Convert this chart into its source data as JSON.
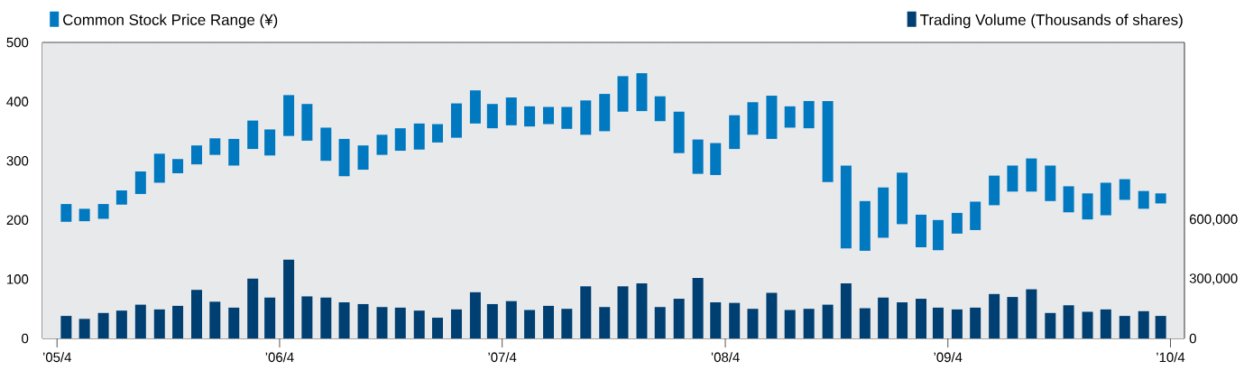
{
  "chart_data": {
    "type": "bar",
    "legend": "top",
    "grid": "y",
    "x": [
      "2005-04-16",
      "2005-05-16",
      "2005-06-16",
      "2005-07-16",
      "2005-08-16",
      "2005-09-16",
      "2005-10-16",
      "2005-11-16",
      "2005-12-16",
      "2006-01-16",
      "2006-02-16",
      "2006-03-16",
      "2006-04-16",
      "2006-05-16",
      "2006-06-16",
      "2006-07-16",
      "2006-08-16",
      "2006-09-16",
      "2006-10-16",
      "2006-11-16",
      "2006-12-16",
      "2007-01-16",
      "2007-02-16",
      "2007-03-16",
      "2007-04-16",
      "2007-05-16",
      "2007-06-16",
      "2007-07-16",
      "2007-08-16",
      "2007-09-16",
      "2007-10-16",
      "2007-11-16",
      "2007-12-16",
      "2008-01-16",
      "2008-02-16",
      "2008-03-16",
      "2008-04-16",
      "2008-05-16",
      "2008-06-16",
      "2008-07-16",
      "2008-08-16",
      "2008-09-16",
      "2008-10-16",
      "2008-11-16",
      "2008-12-16",
      "2009-01-16",
      "2009-02-16",
      "2009-03-16",
      "2009-04-16",
      "2009-05-16",
      "2009-06-16",
      "2009-07-16",
      "2009-08-16",
      "2009-09-16",
      "2009-10-16",
      "2009-11-16",
      "2009-12-16",
      "2010-01-16",
      "2010-02-16",
      "2010-03-16"
    ],
    "xlim": [
      "2005-03-08",
      "2010-04-24"
    ],
    "xticks": [
      {
        "value": "2005-04-01",
        "label": "’05/4"
      },
      {
        "value": "2006-04-01",
        "label": "’06/4"
      },
      {
        "value": "2007-04-01",
        "label": "’07/4"
      },
      {
        "value": "2008-04-01",
        "label": "’08/4"
      },
      {
        "value": "2009-04-01",
        "label": "’09/4"
      },
      {
        "value": "2010-04-01",
        "label": "’10/4"
      }
    ],
    "ylim": [
      0,
      500
    ],
    "yticks": [
      0,
      100,
      200,
      300,
      400,
      500
    ],
    "y2lim": [
      0,
      1500000
    ],
    "y2ticks": [
      0,
      {
        "value": 300000,
        "label": "300,000"
      },
      {
        "value": 600000,
        "label": "600,000"
      }
    ],
    "series": [
      {
        "name": "Common Stock Price Range (¥)",
        "color": "#0079c1",
        "base": [
          197,
          198,
          202,
          226,
          244,
          263,
          279,
          294,
          310,
          292,
          320,
          309,
          342,
          334,
          300,
          274,
          285,
          310,
          317,
          319,
          331,
          339,
          363,
          355,
          360,
          358,
          362,
          354,
          344,
          350,
          383,
          384,
          367,
          313,
          278,
          276,
          320,
          344,
          337,
          356,
          355,
          264,
          152,
          148,
          170,
          193,
          154,
          149,
          177,
          183,
          225,
          248,
          248,
          232,
          213,
          201,
          208,
          234,
          219,
          228
        ],
        "values": [
          30,
          21,
          25,
          24,
          38,
          49,
          24,
          32,
          28,
          45,
          48,
          44,
          69,
          62,
          56,
          63,
          41,
          34,
          38,
          44,
          31,
          58,
          56,
          41,
          47,
          34,
          29,
          37,
          58,
          63,
          60,
          64,
          42,
          70,
          58,
          54,
          57,
          55,
          73,
          36,
          46,
          137,
          140,
          84,
          85,
          87,
          55,
          51,
          35,
          48,
          50,
          44,
          56,
          60,
          44,
          44,
          55,
          35,
          30,
          17
        ]
      },
      {
        "name": "Trading Volume (Thousands of shares)",
        "color": "#003f72",
        "axis": "y2",
        "values": [
          114000,
          99000,
          129000,
          141000,
          171000,
          147000,
          165000,
          246000,
          186000,
          156000,
          303000,
          207000,
          399000,
          213000,
          207000,
          183000,
          174000,
          159000,
          156000,
          141000,
          105000,
          147000,
          234000,
          174000,
          189000,
          144000,
          165000,
          150000,
          264000,
          159000,
          264000,
          279000,
          159000,
          201000,
          306000,
          183000,
          180000,
          150000,
          231000,
          144000,
          150000,
          171000,
          279000,
          153000,
          207000,
          183000,
          201000,
          156000,
          147000,
          156000,
          225000,
          210000,
          249000,
          129000,
          168000,
          135000,
          147000,
          114000,
          138000,
          114000
        ]
      }
    ]
  }
}
